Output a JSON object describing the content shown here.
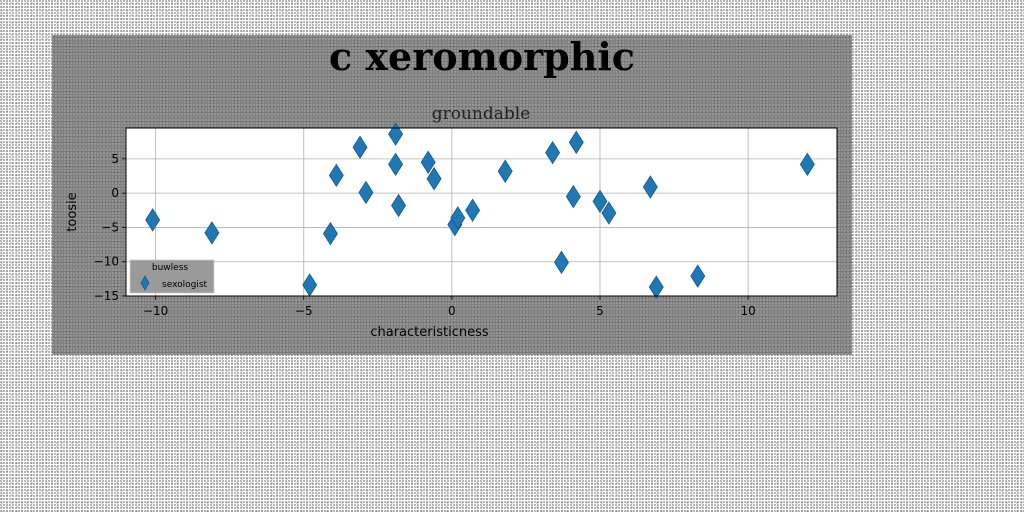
{
  "figure": {
    "suptitle": "c xeromorphic"
  },
  "chart_data": {
    "type": "scatter",
    "title": "groundable",
    "xlabel": "characteristicness",
    "ylabel": "toosie",
    "xlim": [
      -11.0,
      13.0
    ],
    "ylim": [
      -15,
      9.5
    ],
    "xticks": [
      -10,
      -5,
      0,
      5,
      10
    ],
    "yticks": [
      5,
      0,
      -5,
      -10,
      -15
    ],
    "grid": true,
    "legend": {
      "title": "buwless",
      "placement": "lower-left"
    },
    "series": [
      {
        "name": "sexologist",
        "marker": "thin-diamond",
        "color": "#1f77b4",
        "points": [
          {
            "x": -10.1,
            "y": -3.9
          },
          {
            "x": -8.1,
            "y": -5.8
          },
          {
            "x": -4.8,
            "y": -13.4
          },
          {
            "x": -4.1,
            "y": -5.9
          },
          {
            "x": -3.9,
            "y": 2.6
          },
          {
            "x": -3.1,
            "y": 6.7
          },
          {
            "x": -2.9,
            "y": 0.1
          },
          {
            "x": -1.9,
            "y": 8.6
          },
          {
            "x": -1.9,
            "y": 4.2
          },
          {
            "x": -1.8,
            "y": -1.8
          },
          {
            "x": -0.8,
            "y": 4.5
          },
          {
            "x": -0.6,
            "y": 2.1
          },
          {
            "x": 0.1,
            "y": -4.6
          },
          {
            "x": 0.2,
            "y": -3.6
          },
          {
            "x": 0.7,
            "y": -2.5
          },
          {
            "x": 1.8,
            "y": 3.2
          },
          {
            "x": 3.4,
            "y": 5.9
          },
          {
            "x": 3.7,
            "y": -10.1
          },
          {
            "x": 4.1,
            "y": -0.5
          },
          {
            "x": 4.2,
            "y": 7.4
          },
          {
            "x": 5.0,
            "y": -1.2
          },
          {
            "x": 5.3,
            "y": -2.9
          },
          {
            "x": 6.7,
            "y": 0.9
          },
          {
            "x": 6.9,
            "y": -13.7
          },
          {
            "x": 8.3,
            "y": -12.1
          },
          {
            "x": 12.0,
            "y": 4.2
          }
        ]
      }
    ]
  }
}
